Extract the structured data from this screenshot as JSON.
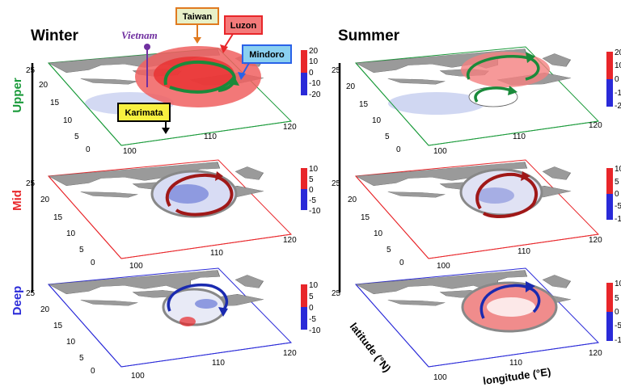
{
  "seasons": [
    "Winter",
    "Summer"
  ],
  "layers": [
    {
      "label": "Upper",
      "color": "#1a9a3a"
    },
    {
      "label": "Mid",
      "color": "#e8262a"
    },
    {
      "label": "Deep",
      "color": "#2a2ad8"
    }
  ],
  "axes": {
    "latitude_label": "latitude (°N)",
    "longitude_label": "longitude (°E)",
    "lat_ticks": [
      "0",
      "5",
      "10",
      "15",
      "20",
      "25"
    ],
    "lon_ticks": [
      "100",
      "110",
      "120"
    ]
  },
  "colorbars": {
    "upper": [
      "20",
      "10",
      "0",
      "-10",
      "-20"
    ],
    "mid_deep": [
      "10",
      "5",
      "0",
      "-5",
      "-10"
    ],
    "colors": {
      "positive": "#e8262a",
      "negative": "#2a2ad8"
    }
  },
  "callouts": [
    {
      "label": "Taiwan",
      "fill": "#e8f0c8",
      "stroke": "#e07a20",
      "text_color": "#000000"
    },
    {
      "label": "Luzon",
      "fill": "#f47a7a",
      "stroke": "#e8262a",
      "text_color": "#000000"
    },
    {
      "label": "Mindoro",
      "fill": "#8ad0f0",
      "stroke": "#2a62e8",
      "text_color": "#000000"
    },
    {
      "label": "Karimata",
      "fill": "#f8f040",
      "stroke": "#000000",
      "text_color": "#000000"
    },
    {
      "label": "Vietnam",
      "fill": "none",
      "stroke": "#7030a0",
      "text_color": "#7030a0"
    }
  ]
}
